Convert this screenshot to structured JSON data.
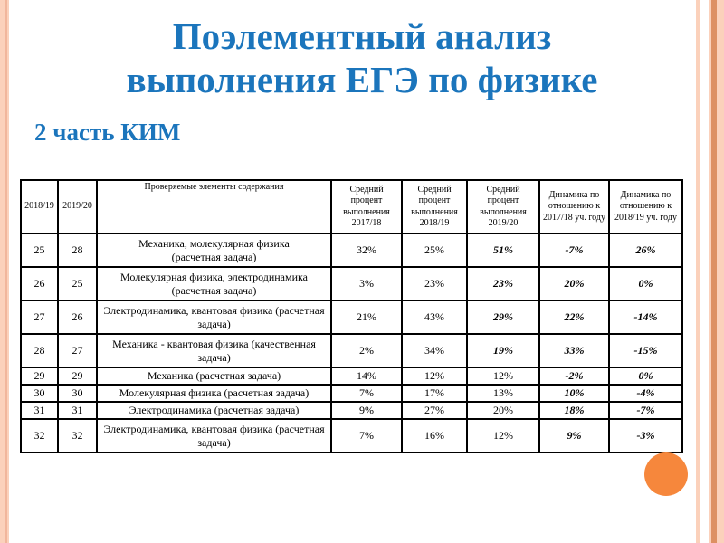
{
  "slide": {
    "title": "Поэлементный анализ\nвыполнения ЕГЭ по физике",
    "subtitle": "2 часть КИМ"
  },
  "colors": {
    "title_blue": "#1B75BC",
    "stripe_light": "#FBD1BB",
    "stripe_left_dark": "#F1B69C",
    "stripe_dark": "#DD9063",
    "circle_orange": "#F6873C"
  },
  "table": {
    "headers": [
      "2018/19",
      "2019/20",
      "Проверяемые элементы содержания",
      "Средний процент\nвыполнения\n2017/18",
      "Средний\nпроцент\nвыполнения\n2018/19",
      "Средний процент\nвыполнения\n2019/20",
      "Динамика по\nотношению к\n2017/18 уч. году",
      "Динамика по\nотношению к\n2018/19 уч. году"
    ],
    "rows": [
      {
        "task_2018_19": "25",
        "task_2019_20": "28",
        "content": "Механика, молекулярная физика\n(расчетная задача)",
        "avg_2017_18": "32%",
        "avg_2018_19": "25%",
        "avg_2019_20": "51%",
        "dyn_2017_18": "-7%",
        "dyn_2018_19": "26%",
        "avg_2019_20_emphasis": true
      },
      {
        "task_2018_19": "26",
        "task_2019_20": "25",
        "content": "Молекулярная физика, электродинамика\n(расчетная задача)",
        "avg_2017_18": "3%",
        "avg_2018_19": "23%",
        "avg_2019_20": "23%",
        "dyn_2017_18": "20%",
        "dyn_2018_19": "0%",
        "avg_2019_20_emphasis": true
      },
      {
        "task_2018_19": "27",
        "task_2019_20": "26",
        "content": "Электродинамика, квантовая физика (расчетная\nзадача)",
        "avg_2017_18": "21%",
        "avg_2018_19": "43%",
        "avg_2019_20": "29%",
        "dyn_2017_18": "22%",
        "dyn_2018_19": "-14%",
        "avg_2019_20_emphasis": true
      },
      {
        "task_2018_19": "28",
        "task_2019_20": "27",
        "content": "Механика - квантовая физика (качественная\nзадача)",
        "avg_2017_18": "2%",
        "avg_2018_19": "34%",
        "avg_2019_20": "19%",
        "dyn_2017_18": "33%",
        "dyn_2018_19": "-15%",
        "avg_2019_20_emphasis": true
      },
      {
        "task_2018_19": "29",
        "task_2019_20": "29",
        "content": "Механика (расчетная задача)",
        "avg_2017_18": "14%",
        "avg_2018_19": "12%",
        "avg_2019_20": "12%",
        "dyn_2017_18": "-2%",
        "dyn_2018_19": "0%",
        "avg_2019_20_emphasis": false
      },
      {
        "task_2018_19": "30",
        "task_2019_20": "30",
        "content": "Молекулярная физика (расчетная задача)",
        "avg_2017_18": "7%",
        "avg_2018_19": "17%",
        "avg_2019_20": "13%",
        "dyn_2017_18": "10%",
        "dyn_2018_19": "-4%",
        "avg_2019_20_emphasis": false
      },
      {
        "task_2018_19": "31",
        "task_2019_20": "31",
        "content": "Электродинамика (расчетная задача)",
        "avg_2017_18": "9%",
        "avg_2018_19": "27%",
        "avg_2019_20": "20%",
        "dyn_2017_18": "18%",
        "dyn_2018_19": "-7%",
        "avg_2019_20_emphasis": false
      },
      {
        "task_2018_19": "32",
        "task_2019_20": "32",
        "content": "Электродинамика, квантовая физика (расчетная\nзадача)",
        "avg_2017_18": "7%",
        "avg_2018_19": "16%",
        "avg_2019_20": "12%",
        "dyn_2017_18": "9%",
        "dyn_2018_19": "-3%",
        "avg_2019_20_emphasis": false
      }
    ]
  }
}
